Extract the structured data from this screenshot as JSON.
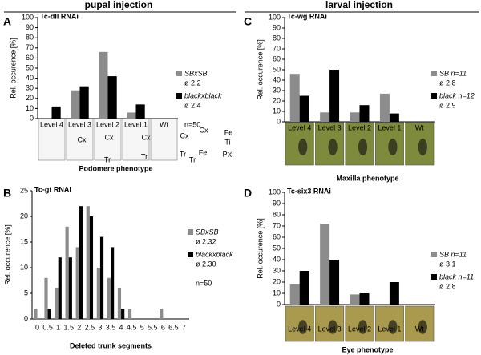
{
  "headers": [
    "pupal injection",
    "larval injection"
  ],
  "panel_letters": [
    "A",
    "B",
    "C",
    "D"
  ],
  "chart_data": [
    {
      "type": "bar",
      "title": "Tc-dll RNAi",
      "y_label": "Rel. occurence [%]",
      "x_label": "Podomere phenotype",
      "categories": [
        "Level 4",
        "Level 3",
        "Level 2",
        "Level 1",
        "Wt"
      ],
      "series": [
        {
          "name": "SBxSB",
          "stat": "ø 2.2",
          "color": "#8c8c8c",
          "values": [
            0,
            28,
            66,
            6,
            0
          ]
        },
        {
          "name": "blackxblack",
          "stat": "ø 2.4",
          "color": "#000000",
          "values": [
            12,
            32,
            42,
            14,
            0
          ]
        }
      ],
      "note": "n=50",
      "image_labels": [
        "Cx",
        "Cx",
        "Tr",
        "Cx",
        "Tr",
        "Cx",
        "Tr",
        "Cx",
        "Fe",
        "Tr",
        "Fe",
        "Ti",
        "Ptc"
      ],
      "ylim": [
        0,
        100
      ],
      "yticks": [
        0,
        10,
        20,
        30,
        40,
        50,
        60,
        70,
        80,
        90,
        100
      ]
    },
    {
      "type": "bar",
      "title": "Tc-gt RNAi",
      "y_label": "Rel. occurence [%]",
      "x_label": "Deleted trunk segments",
      "categories": [
        "0",
        "0.5",
        "1",
        "1.5",
        "2",
        "2.5",
        "3",
        "3.5",
        "4",
        "4.5",
        "5",
        "5.5",
        "6",
        "6.5",
        "7"
      ],
      "series": [
        {
          "name": "SBxSB",
          "stat": "ø 2.32",
          "color": "#8c8c8c",
          "values": [
            2,
            8,
            6,
            18,
            14,
            22,
            10,
            8,
            6,
            2,
            0,
            0,
            2,
            0,
            0
          ]
        },
        {
          "name": "blackxblack",
          "stat": "ø 2.30",
          "color": "#000000",
          "values": [
            0,
            2,
            12,
            12,
            22,
            20,
            16,
            14,
            2,
            0,
            0,
            0,
            0,
            0,
            0
          ]
        }
      ],
      "note": "n=50",
      "ylim": [
        0,
        25
      ],
      "yticks": [
        0,
        5,
        10,
        15,
        20,
        25
      ]
    },
    {
      "type": "bar",
      "title": "Tc-wg RNAi",
      "y_label": "Rel. occurence [%]",
      "x_label": "Maxilla phenotype",
      "categories": [
        "Level 4",
        "Level 3",
        "Level 2",
        "Level 1",
        "Wt"
      ],
      "series": [
        {
          "name": "SB n=11",
          "stat": "ø 2.8",
          "color": "#8c8c8c",
          "values": [
            46,
            9,
            9,
            27,
            0
          ]
        },
        {
          "name": "black n=12",
          "stat": "ø 2.9",
          "color": "#000000",
          "values": [
            25,
            50,
            16,
            8,
            0
          ]
        }
      ],
      "ylim": [
        0,
        100
      ],
      "yticks": [
        0,
        10,
        20,
        30,
        40,
        50,
        60,
        70,
        80,
        90,
        100
      ]
    },
    {
      "type": "bar",
      "title": "Tc-six3 RNAi",
      "y_label": "Rel. occurence [%]",
      "x_label": "Eye phenotype",
      "categories": [
        "Level 4",
        "Level 3",
        "Level 2",
        "Level 1",
        "Wt"
      ],
      "series": [
        {
          "name": "SB n=11",
          "stat": "ø 3.1",
          "color": "#8c8c8c",
          "values": [
            18,
            72,
            9,
            0,
            0
          ]
        },
        {
          "name": "black n=11",
          "stat": "ø 2.8",
          "color": "#000000",
          "values": [
            30,
            40,
            10,
            20,
            0
          ]
        }
      ],
      "ylim": [
        0,
        100
      ],
      "yticks": [
        0,
        10,
        20,
        30,
        40,
        50,
        60,
        70,
        80,
        90,
        100
      ]
    }
  ]
}
